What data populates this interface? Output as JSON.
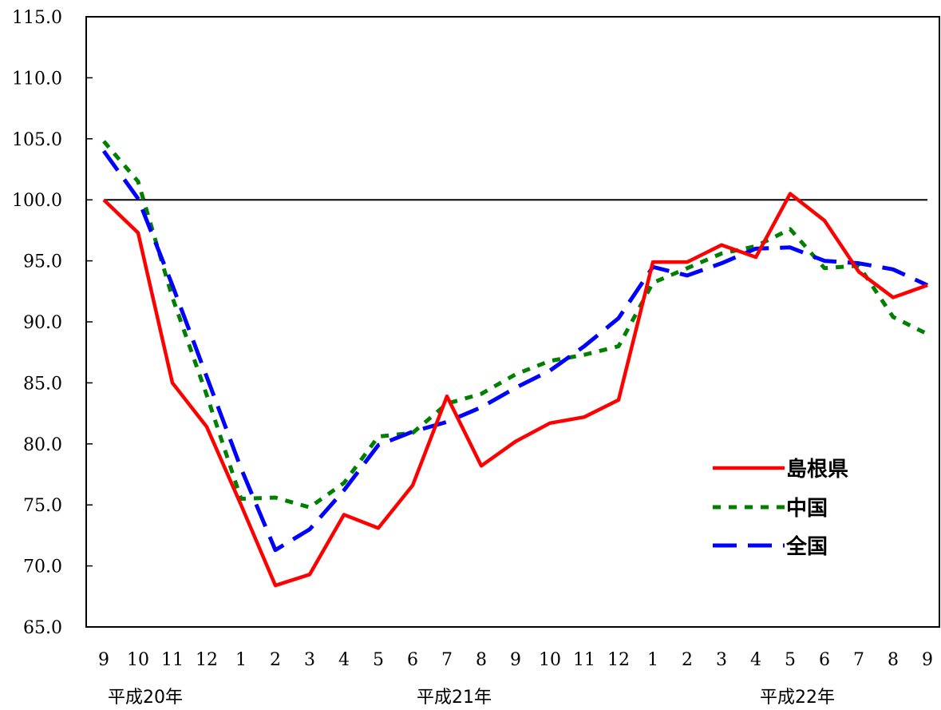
{
  "chart_data": {
    "type": "line",
    "ylim": [
      65.0,
      115.0
    ],
    "yticks": [
      "65.0",
      "70.0",
      "75.0",
      "80.0",
      "85.0",
      "90.0",
      "95.0",
      "100.0",
      "105.0",
      "110.0",
      "115.0"
    ],
    "reference_line": 100.0,
    "grid": false,
    "legend_position": "lower-right",
    "categories": [
      "9",
      "10",
      "11",
      "12",
      "1",
      "2",
      "3",
      "4",
      "5",
      "6",
      "7",
      "8",
      "9",
      "10",
      "11",
      "12",
      "1",
      "2",
      "3",
      "4",
      "5",
      "6",
      "7",
      "8",
      "9"
    ],
    "year_labels": [
      {
        "text": "平成20年",
        "index": 0
      },
      {
        "text": "平成21年",
        "index": 9
      },
      {
        "text": "平成22年",
        "index": 19
      }
    ],
    "series": [
      {
        "name": "島根県",
        "color": "#ff0000",
        "dash": "solid",
        "values": [
          100.0,
          97.3,
          85.0,
          81.4,
          75.0,
          68.4,
          69.3,
          74.2,
          73.1,
          76.6,
          83.9,
          78.2,
          80.2,
          81.7,
          82.2,
          83.6,
          94.9,
          94.9,
          96.3,
          95.3,
          100.5,
          98.3,
          94.1,
          92.0,
          93.0
        ]
      },
      {
        "name": "中国",
        "color": "#008000",
        "dash": "dotted",
        "values": [
          104.8,
          101.5,
          92.0,
          84.0,
          75.5,
          75.6,
          74.8,
          76.8,
          80.6,
          80.9,
          83.3,
          84.1,
          85.7,
          86.8,
          87.3,
          88.0,
          93.2,
          94.4,
          95.6,
          96.2,
          97.6,
          94.4,
          94.6,
          90.4,
          89.0
        ]
      },
      {
        "name": "全国",
        "color": "#0000ff",
        "dash": "dashed",
        "values": [
          104.0,
          100.1,
          93.0,
          85.5,
          78.0,
          71.3,
          73.0,
          76.2,
          79.9,
          81.0,
          81.8,
          83.0,
          84.6,
          86.0,
          88.0,
          90.3,
          94.5,
          93.8,
          94.8,
          96.0,
          96.1,
          95.0,
          94.8,
          94.3,
          93.0
        ]
      }
    ]
  }
}
